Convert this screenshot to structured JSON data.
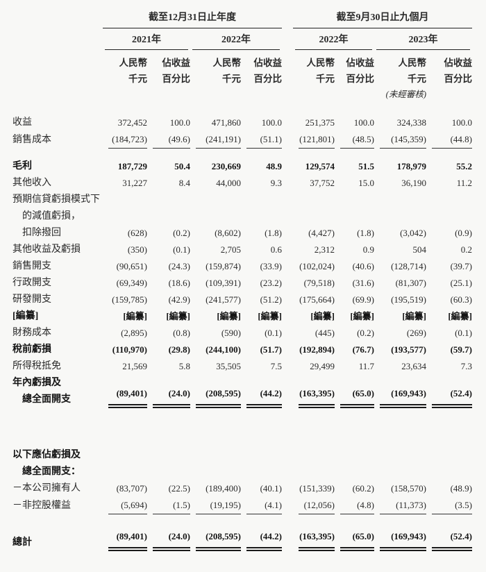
{
  "table": {
    "header": {
      "group1": "截至12月31日止年度",
      "group2": "截至9月30日止九個月",
      "years": [
        "2021年",
        "2022年",
        "2022年",
        "2023年"
      ],
      "subcolumns": [
        {
          "line1": "人民幣",
          "line2": "千元"
        },
        {
          "line1": "佔收益",
          "line2": "百分比"
        },
        {
          "line1": "人民幣",
          "line2": "千元"
        },
        {
          "line1": "佔收益",
          "line2": "百分比"
        },
        {
          "line1": "人民幣",
          "line2": "千元"
        },
        {
          "line1": "佔收益",
          "line2": "百分比"
        },
        {
          "line1": "人民幣",
          "line2": "千元"
        },
        {
          "line1": "佔收益",
          "line2": "百分比"
        }
      ],
      "unaudited_note": "(未經審核)"
    },
    "rows": [
      {
        "type": "spacer",
        "height": 18
      },
      {
        "type": "data",
        "label": [
          [
            "收益",
            0
          ]
        ],
        "values": [
          "372,452",
          "100.0",
          "471,860",
          "100.0",
          "251,375",
          "100.0",
          "324,338",
          "100.0"
        ],
        "bold": false,
        "underline": "none"
      },
      {
        "type": "data",
        "label": [
          [
            "銷售成本",
            0
          ]
        ],
        "values": [
          "(184,723)",
          "(49.6)",
          "(241,191)",
          "(51.1)",
          "(121,801)",
          "(48.5)",
          "(145,359)",
          "(44.8)"
        ],
        "bold": false,
        "underline": "single"
      },
      {
        "type": "spacer",
        "height": 14
      },
      {
        "type": "data",
        "label": [
          [
            "毛利",
            0
          ]
        ],
        "values": [
          "187,729",
          "50.4",
          "230,669",
          "48.9",
          "129,574",
          "51.5",
          "178,979",
          "55.2"
        ],
        "bold": true,
        "underline": "none"
      },
      {
        "type": "data",
        "label": [
          [
            "其他收入",
            0
          ]
        ],
        "values": [
          "31,227",
          "8.4",
          "44,000",
          "9.3",
          "37,752",
          "15.0",
          "36,190",
          "11.2"
        ],
        "bold": false,
        "underline": "none"
      },
      {
        "type": "data",
        "label": [
          [
            "預期信貸虧損模式下",
            0
          ],
          [
            "的減值虧損，",
            1
          ],
          [
            "扣除撥回",
            1
          ]
        ],
        "values": [
          "(628)",
          "(0.2)",
          "(8,602)",
          "(1.8)",
          "(4,427)",
          "(1.8)",
          "(3,042)",
          "(0.9)"
        ],
        "bold": false,
        "underline": "none"
      },
      {
        "type": "data",
        "label": [
          [
            "其他收益及虧損",
            0
          ]
        ],
        "values": [
          "(350)",
          "(0.1)",
          "2,705",
          "0.6",
          "2,312",
          "0.9",
          "504",
          "0.2"
        ],
        "bold": false,
        "underline": "none"
      },
      {
        "type": "data",
        "label": [
          [
            "銷售開支",
            0
          ]
        ],
        "values": [
          "(90,651)",
          "(24.3)",
          "(159,874)",
          "(33.9)",
          "(102,024)",
          "(40.6)",
          "(128,714)",
          "(39.7)"
        ],
        "bold": false,
        "underline": "none"
      },
      {
        "type": "data",
        "label": [
          [
            "行政開支",
            0
          ]
        ],
        "values": [
          "(69,349)",
          "(18.6)",
          "(109,391)",
          "(23.2)",
          "(79,518)",
          "(31.6)",
          "(81,307)",
          "(25.1)"
        ],
        "bold": false,
        "underline": "none"
      },
      {
        "type": "data",
        "label": [
          [
            "研發開支",
            0
          ]
        ],
        "values": [
          "(159,785)",
          "(42.9)",
          "(241,577)",
          "(51.2)",
          "(175,664)",
          "(69.9)",
          "(195,519)",
          "(60.3)"
        ],
        "bold": false,
        "underline": "none"
      },
      {
        "type": "data",
        "label": [
          [
            "[編纂]",
            0
          ]
        ],
        "values": [
          "[編纂]",
          "[編纂]",
          "[編纂]",
          "[編纂]",
          "[編纂]",
          "[編纂]",
          "[編纂]",
          "[編纂]"
        ],
        "bold": true,
        "underline": "none"
      },
      {
        "type": "data",
        "label": [
          [
            "財務成本",
            0
          ]
        ],
        "values": [
          "(2,895)",
          "(0.8)",
          "(590)",
          "(0.1)",
          "(445)",
          "(0.2)",
          "(269)",
          "(0.1)"
        ],
        "bold": false,
        "underline": "none"
      },
      {
        "type": "data",
        "label": [
          [
            "稅前虧損",
            0
          ]
        ],
        "values": [
          "(110,970)",
          "(29.8)",
          "(244,100)",
          "(51.7)",
          "(192,894)",
          "(76.7)",
          "(193,577)",
          "(59.7)"
        ],
        "bold": true,
        "underline": "none"
      },
      {
        "type": "data",
        "label": [
          [
            "所得稅抵免",
            0
          ]
        ],
        "values": [
          "21,569",
          "5.8",
          "35,505",
          "7.5",
          "29,499",
          "11.7",
          "23,634",
          "7.3"
        ],
        "bold": false,
        "underline": "none"
      },
      {
        "type": "data",
        "label": [
          [
            "年內虧損及",
            0
          ],
          [
            "總全面開支",
            1
          ]
        ],
        "values": [
          "(89,401)",
          "(24.0)",
          "(208,595)",
          "(44.2)",
          "(163,395)",
          "(65.0)",
          "(169,943)",
          "(52.4)"
        ],
        "bold": true,
        "underline": "double"
      },
      {
        "type": "spacer",
        "height": 56
      },
      {
        "type": "data",
        "label": [
          [
            "以下應佔虧損及",
            0
          ],
          [
            "總全面開支：",
            1
          ]
        ],
        "values": null,
        "bold": true,
        "underline": "none"
      },
      {
        "type": "data",
        "label": [
          [
            "－本公司擁有人",
            0
          ]
        ],
        "values": [
          "(83,707)",
          "(22.5)",
          "(189,400)",
          "(40.1)",
          "(151,339)",
          "(60.2)",
          "(158,570)",
          "(48.9)"
        ],
        "bold": false,
        "underline": "none"
      },
      {
        "type": "data",
        "label": [
          [
            "－非控股權益",
            0
          ]
        ],
        "values": [
          "(5,694)",
          "(1.5)",
          "(19,195)",
          "(4.1)",
          "(12,056)",
          "(4.8)",
          "(11,373)",
          "(3.5)"
        ],
        "bold": false,
        "underline": "single"
      },
      {
        "type": "spacer",
        "height": 20
      },
      {
        "type": "data",
        "label": [
          [
            "總計",
            0
          ]
        ],
        "values": [
          "(89,401)",
          "(24.0)",
          "(208,595)",
          "(44.2)",
          "(163,395)",
          "(65.0)",
          "(169,943)",
          "(52.4)"
        ],
        "bold": true,
        "underline": "double"
      }
    ]
  }
}
